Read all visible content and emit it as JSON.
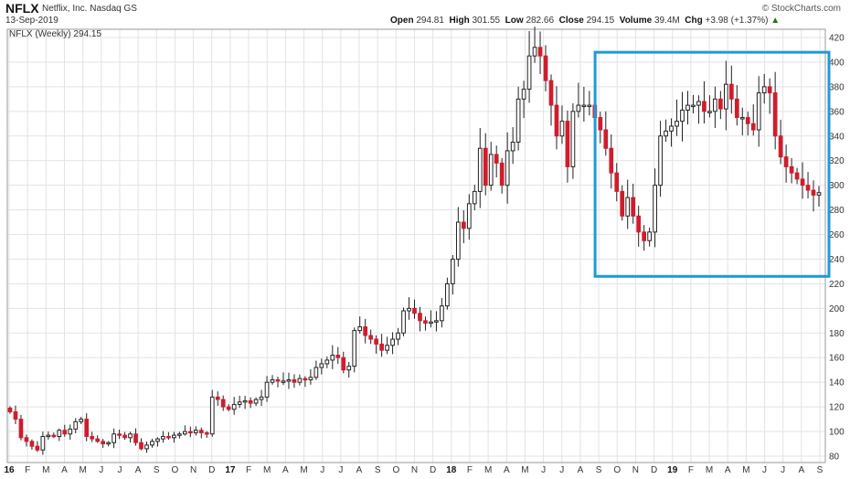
{
  "header": {
    "symbol": "NFLX",
    "company": "Netflix, Inc.  Nasdaq GS",
    "date": "13-Sep-2019",
    "open_label": "Open",
    "open": "294.81",
    "high_label": "High",
    "high": "301.55",
    "low_label": "Low",
    "low": "282.66",
    "close_label": "Close",
    "close": "294.15",
    "volume_label": "Volume",
    "volume": "39.4M",
    "chg_label": "Chg",
    "chg": "+3.98 (+1.37%)",
    "chg_arrow": "▲",
    "brand": "© StockCharts.com"
  },
  "legend": "NFLX (Weekly) 294.15",
  "colors": {
    "up_candle": "#ffffff",
    "down_candle": "#d01c2d",
    "wick": "#222222",
    "grid": "#e3e3e3",
    "highlight_box": "#1f9ad8",
    "positive_change": "#1a7a1a"
  },
  "chart_data": {
    "type": "candlestick",
    "interval": "weekly",
    "ylim": [
      80,
      420
    ],
    "y_ticks": [
      80,
      100,
      120,
      140,
      160,
      180,
      200,
      220,
      240,
      260,
      280,
      300,
      320,
      340,
      360,
      380,
      400,
      420
    ],
    "x_ticks": [
      "16",
      "F",
      "M",
      "A",
      "M",
      "J",
      "J",
      "A",
      "S",
      "O",
      "N",
      "D",
      "17",
      "F",
      "M",
      "A",
      "M",
      "J",
      "J",
      "A",
      "S",
      "O",
      "N",
      "D",
      "18",
      "F",
      "M",
      "A",
      "M",
      "J",
      "J",
      "A",
      "S",
      "O",
      "N",
      "D",
      "19",
      "F",
      "M",
      "A",
      "M",
      "J",
      "J",
      "A",
      "S"
    ],
    "bold_ticks": [
      "16",
      "17",
      "18",
      "19"
    ],
    "grid": true,
    "closes": [
      116,
      110,
      95,
      92,
      88,
      85,
      96,
      97,
      96,
      101,
      98,
      102,
      108,
      110,
      96,
      94,
      92,
      90,
      91,
      98,
      97,
      95,
      98,
      91,
      86,
      89,
      92,
      94,
      96,
      95,
      97,
      98,
      100,
      99,
      101,
      99,
      98,
      128,
      126,
      120,
      118,
      122,
      124,
      125,
      123,
      126,
      128,
      140,
      142,
      141,
      141,
      142,
      140,
      143,
      142,
      144,
      152,
      155,
      158,
      162,
      160,
      150,
      153,
      182,
      185,
      178,
      175,
      171,
      166,
      170,
      175,
      180,
      198,
      200,
      196,
      190,
      188,
      189,
      190,
      202,
      220,
      240,
      270,
      265,
      285,
      295,
      330,
      300,
      325,
      318,
      300,
      328,
      335,
      370,
      378,
      405,
      412,
      405,
      385,
      365,
      340,
      352,
      315,
      360,
      365,
      365,
      365,
      355,
      345,
      330,
      310,
      295,
      275,
      290,
      275,
      262,
      255,
      262,
      300,
      340,
      344,
      348,
      352,
      361,
      365,
      365,
      368,
      360,
      360,
      370,
      362,
      382,
      370,
      355,
      355,
      350,
      345,
      375,
      380,
      375,
      340,
      323,
      315,
      310,
      305,
      300,
      296,
      292,
      294
    ],
    "highlight_box": {
      "x_start_label": "S",
      "x_start_year": "2018",
      "x_end_label": "S",
      "x_end_year": "2019",
      "y_range": [
        226,
        408
      ]
    }
  }
}
